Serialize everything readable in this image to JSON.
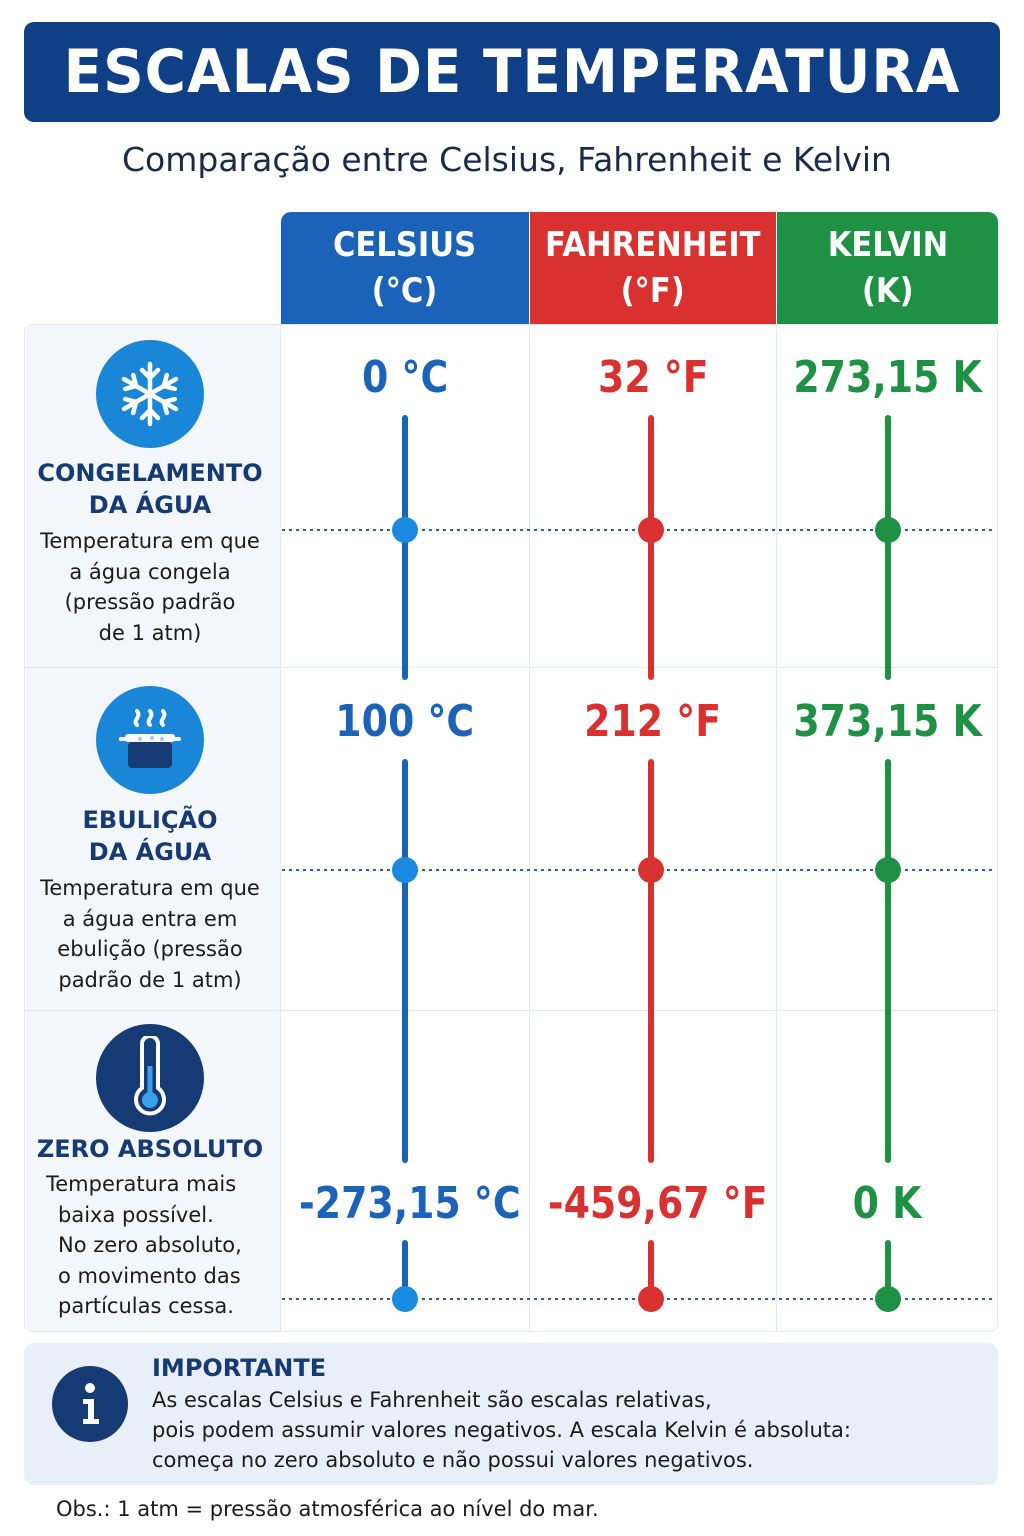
{
  "title": "ESCALAS DE TEMPERATURA",
  "subtitle": "Comparação entre Celsius, Fahrenheit e Kelvin",
  "colors": {
    "celsius": "#1a63b8",
    "fahrenheit": "#d8312f",
    "kelvin": "#1e9144",
    "navy": "#163a73"
  },
  "columns": [
    {
      "name": "CELSIUS",
      "unit": "(°C)"
    },
    {
      "name": "FAHRENHEIT",
      "unit": "(°F)"
    },
    {
      "name": "KELVIN",
      "unit": "(K)"
    }
  ],
  "rows": [
    {
      "icon": "snowflake-icon",
      "title_lines": [
        "CONGELAMENTO",
        "DA ÁGUA"
      ],
      "desc_lines": [
        "Temperatura em que",
        "a água congela",
        "(pressão padrão",
        "de 1 atm)"
      ],
      "values": [
        "0 °C",
        "32 °F",
        "273,15 K"
      ]
    },
    {
      "icon": "boiling-pot-icon",
      "title_lines": [
        "EBULIÇÃO",
        "DA ÁGUA"
      ],
      "desc_lines": [
        "Temperatura em que",
        "a água entra em",
        "ebulição (pressão",
        "padrão de 1 atm)"
      ],
      "values": [
        "100 °C",
        "212 °F",
        "373,15 K"
      ]
    },
    {
      "icon": "thermometer-icon",
      "title_lines": [
        "ZERO ABSOLUTO"
      ],
      "desc_lines": [
        "Temperatura mais",
        "baixa possível.",
        "No zero absoluto,",
        "o movimento das",
        "partículas cessa."
      ],
      "values": [
        "-273,15 °C",
        "-459,67 °F",
        "0 K"
      ]
    }
  ],
  "note": {
    "icon": "info-icon",
    "title": "IMPORTANTE",
    "lines": [
      "As escalas Celsius e Fahrenheit são escalas relativas,",
      "pois podem assumir valores negativos. A escala Kelvin é absoluta:",
      "começa no zero absoluto e não possui valores negativos."
    ]
  },
  "footnote": "Obs.: 1 atm = pressão atmosférica ao nível do mar."
}
